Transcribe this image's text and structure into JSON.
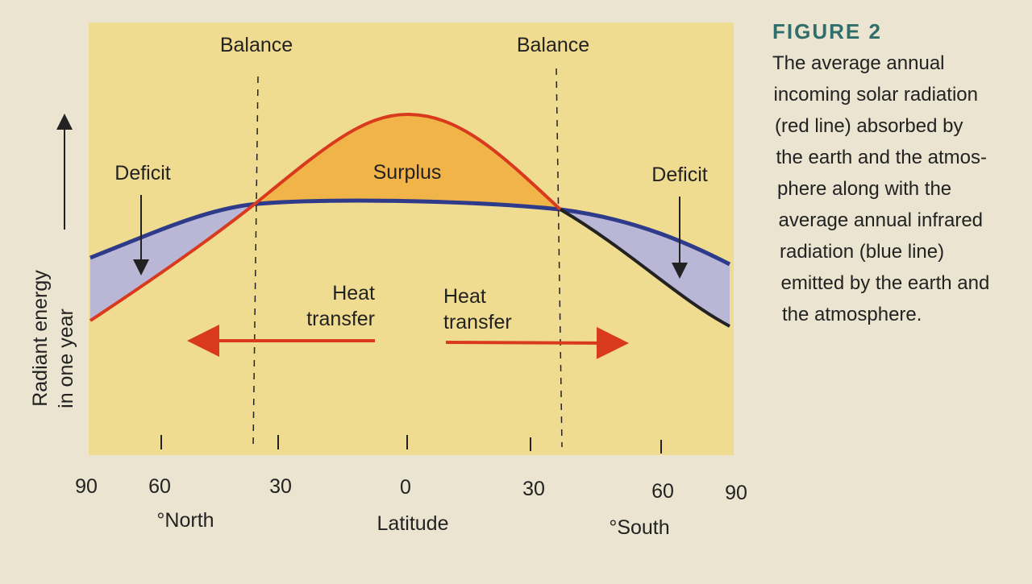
{
  "figure": {
    "label": "FIGURE 2",
    "caption_lines": [
      "The average annual",
      "incoming solar radiation",
      "(red line) absorbed by",
      "the earth and the atmos-",
      "phere along with the",
      "average annual infrared",
      "radiation (blue line)",
      "emitted by the earth and",
      "the atmosphere."
    ]
  },
  "diagram": {
    "balance_labels": [
      "Balance",
      "Balance"
    ],
    "deficit_labels": [
      "Deficit",
      "Deficit"
    ],
    "surplus_label": "Surplus",
    "heat_transfer_labels": [
      [
        "Heat",
        "transfer"
      ],
      [
        "Heat",
        "transfer"
      ]
    ],
    "y_axis_label": [
      "Radiant energy",
      "in one year"
    ],
    "x_tick_labels": [
      "90",
      "60",
      "30",
      "0",
      "30",
      "60",
      "90"
    ],
    "x_axis_labels": [
      "°North",
      "Latitude",
      "°South"
    ]
  }
}
